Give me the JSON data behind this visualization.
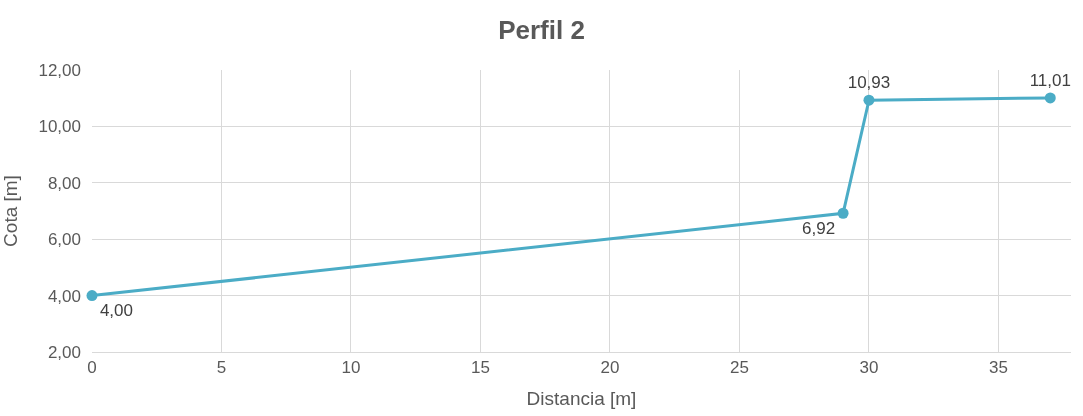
{
  "chart_data": {
    "type": "line",
    "title": "Perfil 2",
    "xlabel": "Distancia [m]",
    "ylabel": "Cota [m]",
    "x": [
      0,
      29,
      30,
      37
    ],
    "series": [
      {
        "color": "#4bacc6",
        "values": [
          4.0,
          6.92,
          10.93,
          11.01
        ],
        "value_labels": [
          "4,00",
          "6,92",
          "10,93",
          "11,01"
        ]
      }
    ],
    "xlim": [
      0,
      37.8
    ],
    "xticks": [
      0,
      5,
      10,
      15,
      20,
      25,
      30,
      35
    ],
    "ylim": [
      2,
      12
    ],
    "yticks": [
      {
        "value": 2,
        "label": "2,00"
      },
      {
        "value": 4,
        "label": "4,00"
      },
      {
        "value": 6,
        "label": "6,00"
      },
      {
        "value": 8,
        "label": "8,00"
      },
      {
        "value": 10,
        "label": "10,00"
      },
      {
        "value": 12,
        "label": "12,00"
      }
    ],
    "grid": true,
    "marker": "circle",
    "line_style": "solid",
    "legend": false
  }
}
